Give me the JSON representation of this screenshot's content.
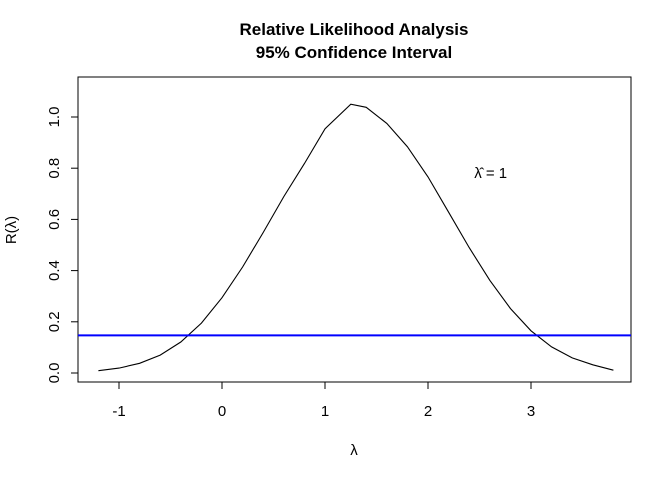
{
  "chart_data": {
    "type": "line",
    "title": "Relative Likelihood Analysis",
    "subtitle": "95% Confidence Interval",
    "xlabel": "λ",
    "ylabel": "R(λ)",
    "xlim": [
      -1.2,
      3.8
    ],
    "ylim": [
      0.0,
      1.05
    ],
    "x_ticks": [
      -1,
      0,
      1,
      2,
      3
    ],
    "y_ticks": [
      0.0,
      0.2,
      0.4,
      0.6,
      0.8,
      1.0
    ],
    "x_tick_labels": [
      "-1",
      "0",
      "1",
      "2",
      "3"
    ],
    "y_tick_labels": [
      "0.0",
      "0.2",
      "0.4",
      "0.6",
      "0.8",
      "1.0"
    ],
    "grid": false,
    "series": [
      {
        "color": "#000000",
        "x": [
          -1.2,
          -1.0,
          -0.8,
          -0.6,
          -0.4,
          -0.2,
          0.0,
          0.2,
          0.4,
          0.6,
          0.8,
          1.0,
          1.25,
          1.4,
          1.6,
          1.8,
          2.0,
          2.2,
          2.4,
          2.6,
          2.8,
          3.0,
          3.2,
          3.4,
          3.6,
          3.8
        ],
        "y": [
          0.009,
          0.019,
          0.038,
          0.07,
          0.121,
          0.195,
          0.294,
          0.414,
          0.549,
          0.689,
          0.818,
          0.954,
          1.05,
          1.038,
          0.975,
          0.884,
          0.766,
          0.628,
          0.49,
          0.362,
          0.252,
          0.165,
          0.102,
          0.059,
          0.032,
          0.011
        ]
      }
    ],
    "hlines": [
      {
        "y": 0.147,
        "color": "#0000ff"
      }
    ],
    "annotation": {
      "text": "λ̂ = 1",
      "x": 2.4,
      "y": 0.8
    }
  }
}
